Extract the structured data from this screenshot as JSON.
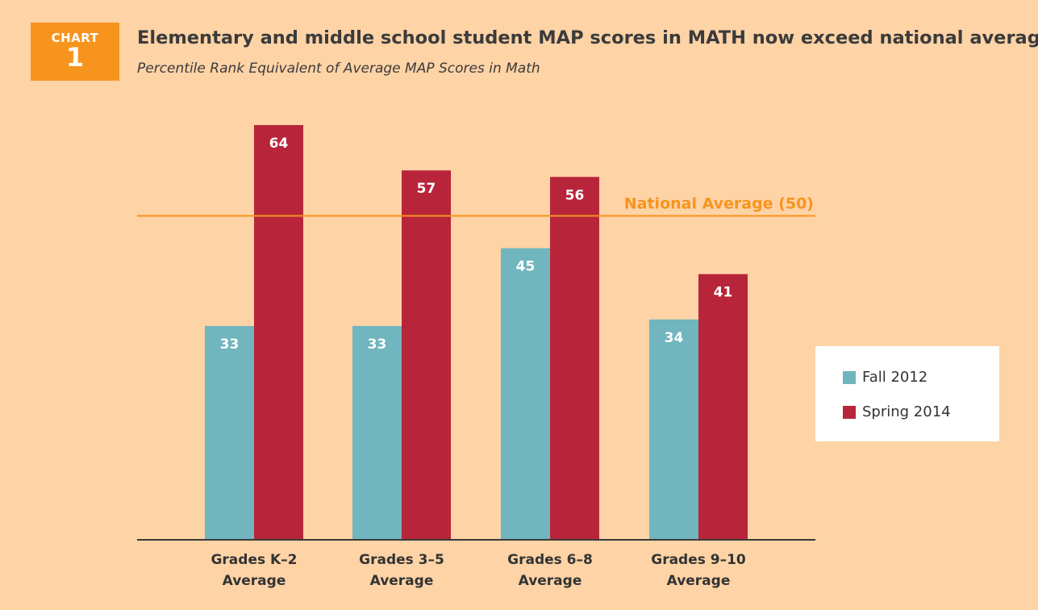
{
  "badge": {
    "label": "CHART",
    "number": "1"
  },
  "chart_data": {
    "type": "bar",
    "title": "Elementary and middle school student MAP scores in MATH now exceed national average",
    "subtitle": "Percentile Rank Equivalent of Average MAP Scores in Math",
    "categories": [
      [
        "Grades K–2",
        "Average"
      ],
      [
        "Grades 3–5",
        "Average"
      ],
      [
        "Grades 6–8",
        "Average"
      ],
      [
        "Grades 9–10",
        "Average"
      ]
    ],
    "series": [
      {
        "name": "Fall 2012",
        "color": "#71B5BE",
        "values": [
          33,
          33,
          45,
          34
        ]
      },
      {
        "name": "Spring 2014",
        "color": "#B8253A",
        "values": [
          64,
          57,
          56,
          41
        ]
      }
    ],
    "reference_line": {
      "label": "National Average (50)",
      "value": 50,
      "color": "#F7941D"
    },
    "ylim": [
      0,
      64
    ],
    "xlabel": "",
    "ylabel": "",
    "grid": false,
    "legend_position": "right"
  }
}
